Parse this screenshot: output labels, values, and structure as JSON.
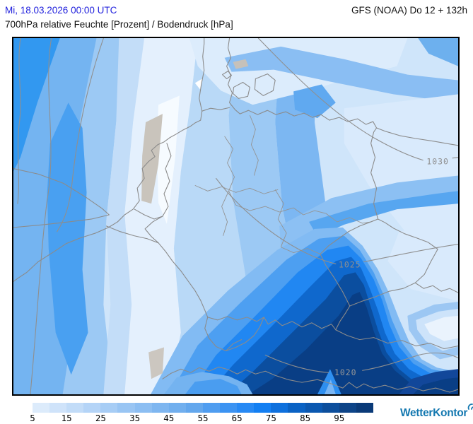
{
  "header": {
    "datetime": "Mi, 18.03.2026 00:00 UTC",
    "model_run": "GFS (NOAA) Do 12 + 132h",
    "subtitle": "700hPa relative Feuchte [Prozent] / Bodendruck [hPa]"
  },
  "map": {
    "isobars": [
      {
        "value": "1030"
      },
      {
        "value": "1025"
      },
      {
        "value": "1020"
      }
    ]
  },
  "legend": {
    "tick_labels": [
      "5",
      "15",
      "25",
      "35",
      "45",
      "55",
      "65",
      "75",
      "85",
      "95"
    ],
    "segment_colors": [
      "#dcebfb",
      "#cfe3fa",
      "#c2dcf8",
      "#b4d4f7",
      "#a7cdf5",
      "#99c5f3",
      "#8cbef2",
      "#7eb6f0",
      "#71afee",
      "#63a7ed",
      "#4f9df0",
      "#3b93f2",
      "#2789f4",
      "#137ff2",
      "#0e70dd",
      "#0a62c4",
      "#0b58b0",
      "#0c4e9c",
      "#0d4488",
      "#0a3a78"
    ]
  },
  "logo": {
    "text": "WetterKontor",
    "color": "#1478b0"
  },
  "colors": {
    "date_text": "#2222dd",
    "contour_label": "#8f8f8f"
  }
}
